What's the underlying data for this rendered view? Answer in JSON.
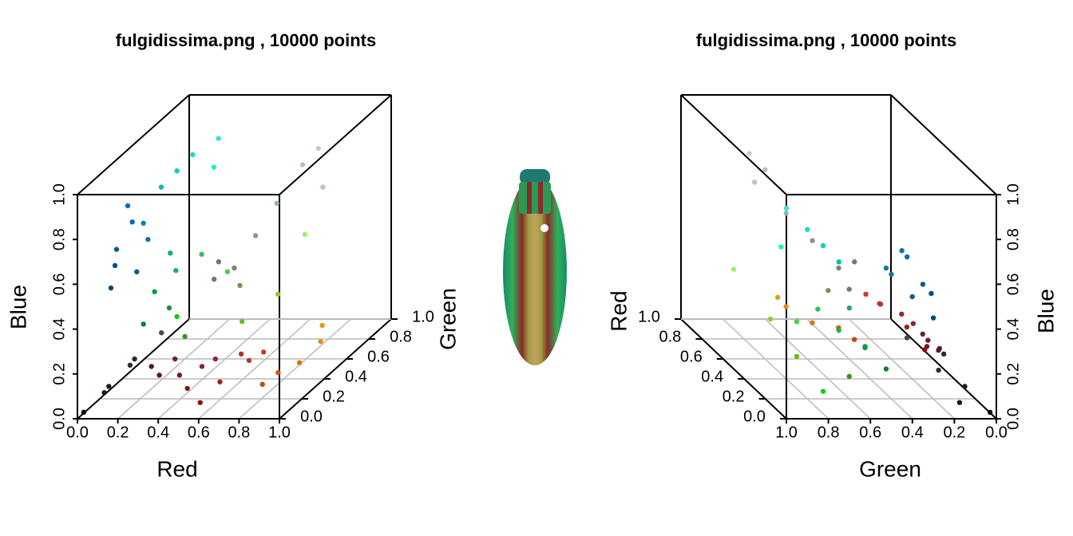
{
  "chart_data": [
    {
      "type": "scatter3d",
      "title": "fulgidissima.png , 10000 points",
      "xlabel": "Red",
      "ylabel": "Green",
      "zlabel": "Blue",
      "xlim": [
        0,
        1
      ],
      "ylim": [
        0,
        1
      ],
      "zlim": [
        0,
        1
      ],
      "xticks": [
        {
          "value": 0,
          "label": "0.0"
        },
        {
          "value": 0.2,
          "label": "0.2"
        },
        {
          "value": 0.4,
          "label": "0.4"
        },
        {
          "value": 0.6,
          "label": "0.6"
        },
        {
          "value": 0.8,
          "label": "0.8"
        },
        {
          "value": 1,
          "label": "1.0"
        }
      ],
      "yticks": [
        {
          "value": 0,
          "label": "0.0"
        },
        {
          "value": 0.2,
          "label": "0.2"
        },
        {
          "value": 0.4,
          "label": "0.4"
        },
        {
          "value": 0.6,
          "label": "0.6"
        },
        {
          "value": 0.8,
          "label": "0.8"
        },
        {
          "value": 1,
          "label": "1.0"
        }
      ],
      "zticks": [
        {
          "value": 0,
          "label": "0.0"
        },
        {
          "value": 0.2,
          "label": "0.2"
        },
        {
          "value": 0.4,
          "label": "0.4"
        },
        {
          "value": 0.6,
          "label": "0.6"
        },
        {
          "value": 0.8,
          "label": "0.8"
        },
        {
          "value": 1,
          "label": "1.0"
        }
      ],
      "grid": true,
      "x": [
        0.45,
        0.55,
        0.6,
        0.7,
        0.5,
        0.35,
        0.65,
        0.75,
        0.8,
        0.4,
        0.3,
        0.58,
        0.85,
        0.9,
        0.8,
        0.88,
        0.75,
        0.1,
        0.15,
        0.05,
        0.2,
        0.25,
        0.02,
        0.05,
        0.1,
        0.15,
        0.2,
        0.3,
        0.05,
        0.4,
        0.55,
        0.1,
        0.05,
        0.2,
        0,
        0.05,
        0.02,
        0,
        0.1,
        0.05,
        0,
        0.1,
        0.05,
        0.1,
        0,
        0.2,
        0.15,
        0.45,
        0.5,
        0.4,
        0.55,
        0.5,
        0.6,
        0.7,
        0.8,
        0.6,
        0.75
      ],
      "y": [
        0.1,
        0.12,
        0.15,
        0.2,
        0.08,
        0.1,
        0.1,
        0.18,
        0.22,
        0.15,
        0.12,
        0.05,
        0.45,
        0.55,
        0.35,
        0.6,
        0.3,
        0.1,
        0.2,
        0.15,
        0.15,
        0.3,
        0.02,
        0.6,
        0.7,
        0.55,
        0.75,
        0.8,
        0.5,
        0.75,
        0.8,
        0.65,
        0.8,
        0.6,
        0.35,
        0.4,
        0.3,
        0.45,
        0.45,
        0.5,
        0.3,
        0.35,
        0.8,
        0.85,
        0.75,
        0.9,
        0.95,
        0.45,
        0.5,
        0.5,
        0.6,
        0.55,
        0.7,
        0.75,
        0.75,
        0.95,
        0.8
      ],
      "z": [
        0.15,
        0.18,
        0.2,
        0.2,
        0.1,
        0.15,
        0.12,
        0.18,
        0.2,
        0.2,
        0.18,
        0.05,
        0.05,
        0.1,
        0.05,
        0.15,
        0.02,
        0.1,
        0.15,
        0.05,
        0.2,
        0.25,
        0.02,
        0.3,
        0.35,
        0.25,
        0.4,
        0.3,
        0.2,
        0.1,
        0.2,
        0.45,
        0.1,
        0.1,
        0.6,
        0.7,
        0.55,
        0.75,
        0.6,
        0.65,
        0.45,
        0.5,
        0.75,
        0.8,
        0.7,
        0.85,
        0.7,
        0.5,
        0.45,
        0.4,
        0.55,
        0.35,
        0.65,
        0.8,
        0.7,
        0.4,
        0.85
      ]
    },
    {
      "type": "scatter3d",
      "title": "fulgidissima.png , 10000 points",
      "xlabel": "Green",
      "ylabel": "Red",
      "zlabel": "Blue",
      "xlim": [
        1,
        0
      ],
      "ylim": [
        0,
        1
      ],
      "zlim": [
        0,
        1
      ],
      "xticks": [
        {
          "value": 1,
          "label": "1.0"
        },
        {
          "value": 0.8,
          "label": "0.8"
        },
        {
          "value": 0.6,
          "label": "0.6"
        },
        {
          "value": 0.4,
          "label": "0.4"
        },
        {
          "value": 0.2,
          "label": "0.2"
        },
        {
          "value": 0,
          "label": "0.0"
        }
      ],
      "yticks": [
        {
          "value": 0,
          "label": "0.0"
        },
        {
          "value": 0.2,
          "label": "0.2"
        },
        {
          "value": 0.4,
          "label": "0.4"
        },
        {
          "value": 0.6,
          "label": "0.6"
        },
        {
          "value": 0.8,
          "label": "0.8"
        },
        {
          "value": 1,
          "label": "1.0"
        }
      ],
      "zticks": [
        {
          "value": 0,
          "label": "0.0"
        },
        {
          "value": 0.2,
          "label": "0.2"
        },
        {
          "value": 0.4,
          "label": "0.4"
        },
        {
          "value": 0.6,
          "label": "0.6"
        },
        {
          "value": 0.8,
          "label": "0.8"
        },
        {
          "value": 1,
          "label": "1.0"
        }
      ],
      "grid": true,
      "x": [
        0.1,
        0.12,
        0.15,
        0.2,
        0.08,
        0.1,
        0.1,
        0.18,
        0.22,
        0.15,
        0.12,
        0.05,
        0.45,
        0.55,
        0.35,
        0.6,
        0.3,
        0.1,
        0.2,
        0.15,
        0.15,
        0.3,
        0.02,
        0.6,
        0.7,
        0.55,
        0.75,
        0.8,
        0.5,
        0.75,
        0.8,
        0.65,
        0.8,
        0.6,
        0.35,
        0.4,
        0.3,
        0.45,
        0.45,
        0.5,
        0.3,
        0.35,
        0.8,
        0.85,
        0.75,
        0.9,
        0.95,
        0.45,
        0.5,
        0.5,
        0.6,
        0.55,
        0.7,
        0.75,
        0.75,
        0.95,
        0.8
      ],
      "y": [
        0.45,
        0.55,
        0.6,
        0.7,
        0.5,
        0.35,
        0.65,
        0.75,
        0.8,
        0.4,
        0.3,
        0.58,
        0.85,
        0.9,
        0.8,
        0.88,
        0.75,
        0.1,
        0.15,
        0.05,
        0.2,
        0.25,
        0.02,
        0.05,
        0.1,
        0.15,
        0.2,
        0.3,
        0.05,
        0.4,
        0.55,
        0.1,
        0.05,
        0.2,
        0,
        0.05,
        0.02,
        0,
        0.1,
        0.05,
        0,
        0.1,
        0.05,
        0.1,
        0,
        0.2,
        0.15,
        0.45,
        0.5,
        0.4,
        0.55,
        0.5,
        0.6,
        0.7,
        0.8,
        0.6,
        0.75
      ],
      "z": [
        0.15,
        0.18,
        0.2,
        0.2,
        0.1,
        0.15,
        0.12,
        0.18,
        0.2,
        0.2,
        0.18,
        0.05,
        0.05,
        0.1,
        0.05,
        0.15,
        0.02,
        0.1,
        0.15,
        0.05,
        0.2,
        0.25,
        0.02,
        0.3,
        0.35,
        0.25,
        0.4,
        0.3,
        0.2,
        0.1,
        0.2,
        0.45,
        0.1,
        0.1,
        0.6,
        0.7,
        0.55,
        0.75,
        0.6,
        0.65,
        0.45,
        0.5,
        0.75,
        0.8,
        0.7,
        0.85,
        0.7,
        0.5,
        0.45,
        0.4,
        0.55,
        0.35,
        0.65,
        0.8,
        0.7,
        0.4,
        0.85
      ]
    }
  ]
}
